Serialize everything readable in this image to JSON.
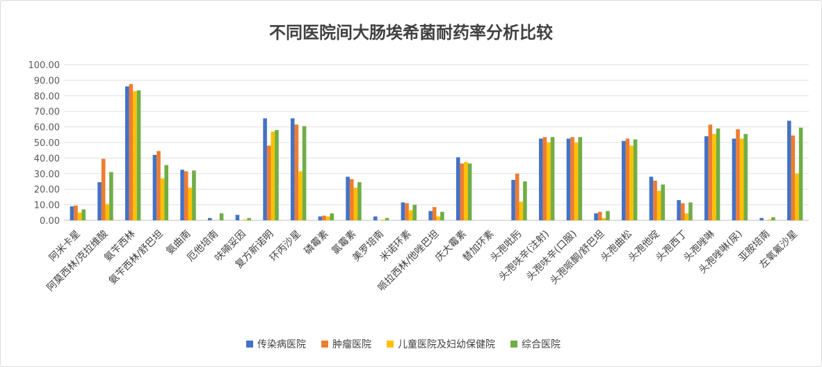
{
  "chart_data": {
    "type": "bar",
    "title": "不同医院间大肠埃希菌耐药率分析比较",
    "ylim": [
      0,
      100
    ],
    "yticks": [
      "0.00",
      "10.00",
      "20.00",
      "30.00",
      "40.00",
      "50.00",
      "60.00",
      "70.00",
      "80.00",
      "90.00",
      "100.00"
    ],
    "grid": true,
    "legend_position": "bottom",
    "categories": [
      "阿米卡星",
      "阿莫西林/克拉维酸",
      "氨苄西林",
      "氨苄西林/舒巴坦",
      "氨曲南",
      "厄他培南",
      "呋喃妥因",
      "复方新诺明",
      "环丙沙星",
      "磷霉素",
      "氯霉素",
      "美罗培南",
      "米诺环素",
      "哌拉西林/他唑巴坦",
      "庆大霉素",
      "替加环素",
      "头孢吡肟",
      "头孢呋辛(注射)",
      "头孢呋辛(口服)",
      "头孢哌酮/舒巴坦",
      "头孢曲松",
      "头孢他啶",
      "头孢西丁",
      "头孢唑啉",
      "头孢唑啉(尿)",
      "亚胺培南",
      "左氧氟沙星"
    ],
    "series": [
      {
        "name": "传染病医院",
        "color": "#4472c4",
        "values": [
          9.0,
          24.5,
          86.0,
          42.0,
          32.5,
          1.5,
          3.5,
          65.5,
          65.5,
          2.5,
          28.0,
          2.5,
          11.5,
          6.0,
          40.5,
          0,
          26.0,
          52.5,
          52.5,
          4.5,
          51.0,
          28.0,
          13.0,
          54.0,
          52.5,
          1.5,
          64.0
        ]
      },
      {
        "name": "肿瘤医院",
        "color": "#ed7d31",
        "values": [
          9.5,
          39.5,
          87.5,
          44.5,
          31.5,
          0,
          0,
          48.0,
          61.5,
          3.0,
          26.5,
          0,
          11.0,
          8.5,
          36.5,
          0,
          30.0,
          53.5,
          53.5,
          5.5,
          52.5,
          25.5,
          11.0,
          61.5,
          58.5,
          0,
          54.5
        ]
      },
      {
        "name": "儿童医院及妇幼保健院",
        "color": "#ffc000",
        "values": [
          5.0,
          10.5,
          83.0,
          27.0,
          21.0,
          0,
          0.5,
          57.0,
          31.5,
          2.5,
          21.0,
          0.5,
          6.5,
          2.5,
          37.5,
          0,
          12.0,
          50.0,
          50.0,
          1.5,
          48.0,
          19.0,
          4.5,
          55.5,
          52.5,
          0.5,
          30.0
        ]
      },
      {
        "name": "综合医院",
        "color": "#70ad47",
        "values": [
          7.0,
          31.0,
          83.5,
          35.5,
          32.0,
          4.5,
          1.5,
          58.0,
          60.5,
          4.5,
          24.5,
          1.5,
          10.0,
          5.5,
          36.5,
          0,
          25.0,
          53.5,
          53.5,
          6.0,
          52.0,
          23.0,
          11.5,
          59.0,
          55.5,
          2.0,
          59.5
        ]
      }
    ]
  }
}
